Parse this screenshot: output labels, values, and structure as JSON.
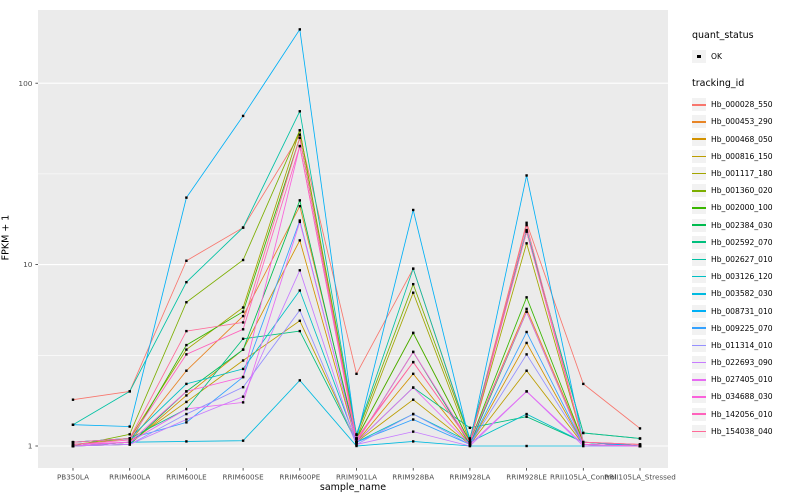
{
  "figure": {
    "background": "#FFFFFF",
    "panel_background": "#EBEBEB",
    "gridline_color": "#FFFFFF",
    "tick_label_color": "#4D4D4D",
    "point_color": "#000000"
  },
  "axes": {
    "x_title": "sample_name",
    "y_title": "FPKM + 1",
    "y_tick_labels": [
      "1",
      "10",
      "100"
    ]
  },
  "legend": {
    "quant_status_title": "quant_status",
    "quant_status_items": [
      {
        "label": "OK",
        "marker": "black-point"
      }
    ],
    "tracking_id_title": "tracking_id"
  },
  "chart_data": {
    "type": "line",
    "xlabel": "sample_name",
    "ylabel": "FPKM + 1",
    "yscale": "log10",
    "yticks": [
      1,
      10,
      100
    ],
    "minor_gridlines": [
      3.162,
      31.62
    ],
    "ylim": [
      0.93,
      240
    ],
    "grid": true,
    "legend_position": "right",
    "point_marker": {
      "shape": "square",
      "color": "#000000",
      "size": 2.4
    },
    "categories": [
      "PB350LA",
      "RRIM600LA",
      "RRIM600LE",
      "RRIM600SE",
      "RRIM600PE",
      "RRIM901LA",
      "RRIM928BA",
      "RRIM928LA",
      "RRIM928LE",
      "RRII105LA_Control",
      "RRII105LA_Stressed"
    ],
    "series": [
      {
        "name": "Hb_000028_550",
        "color": "#F8766D",
        "values": [
          1.8,
          2.0,
          10.5,
          16,
          52,
          2.5,
          9.5,
          1.08,
          17,
          2.2,
          1.25
        ]
      },
      {
        "name": "Hb_000453_290",
        "color": "#E88526",
        "values": [
          1.0,
          1.05,
          2.6,
          5.2,
          21,
          1.1,
          4.2,
          1.05,
          5.7,
          1.05,
          1.0
        ]
      },
      {
        "name": "Hb_000468_050",
        "color": "#D39200",
        "values": [
          1.0,
          1.02,
          1.9,
          3.4,
          13.6,
          1.05,
          2.5,
          1.02,
          3.7,
          1.02,
          1.0
        ]
      },
      {
        "name": "Hb_000816_150",
        "color": "#BC9D00",
        "values": [
          1.0,
          1.05,
          1.75,
          2.96,
          4.9,
          1.05,
          1.8,
          1.02,
          2.6,
          1.02,
          1.0
        ]
      },
      {
        "name": "Hb_001117_180",
        "color": "#A3A500",
        "values": [
          1.02,
          1.1,
          3.4,
          5.8,
          55,
          1.1,
          7.0,
          1.05,
          13.1,
          1.05,
          1.02
        ]
      },
      {
        "name": "Hb_001360_020",
        "color": "#7CAE00",
        "values": [
          1.0,
          1.16,
          6.2,
          10.6,
          55,
          1.15,
          7.8,
          1.1,
          15.2,
          1.18,
          1.1
        ]
      },
      {
        "name": "Hb_002000_100",
        "color": "#39B600",
        "values": [
          1.0,
          1.05,
          3.6,
          5.5,
          50,
          1.1,
          4.2,
          1.05,
          6.6,
          1.05,
          1.0
        ]
      },
      {
        "name": "Hb_002384_030",
        "color": "#00BB4E",
        "values": [
          1.0,
          1.02,
          2.0,
          3.4,
          22.6,
          1.05,
          3.3,
          1.02,
          5.5,
          1.02,
          1.0
        ]
      },
      {
        "name": "Hb_002592_070",
        "color": "#00BF7D",
        "values": [
          1.05,
          1.1,
          1.6,
          3.9,
          4.3,
          1.05,
          2.1,
          1.26,
          1.45,
          1.05,
          1.0
        ]
      },
      {
        "name": "Hb_002627_010",
        "color": "#00C1A3",
        "values": [
          1.31,
          2.0,
          8.0,
          16,
          70,
          1.16,
          9.5,
          1.1,
          15.5,
          1.18,
          1.1
        ]
      },
      {
        "name": "Hb_003126_120",
        "color": "#00BFC4",
        "values": [
          1.05,
          1.1,
          2.2,
          2.66,
          7.2,
          1.05,
          1.5,
          1.05,
          1.5,
          1.05,
          1.0
        ]
      },
      {
        "name": "Hb_003582_030",
        "color": "#00BAE0",
        "values": [
          1.0,
          1.05,
          1.06,
          1.07,
          2.3,
          1.0,
          1.06,
          1.0,
          1.0,
          1.0,
          1.0
        ]
      },
      {
        "name": "Hb_008731_010",
        "color": "#00B0F6",
        "values": [
          1.31,
          1.28,
          23.4,
          66,
          198,
          1.1,
          20,
          1.05,
          31,
          1.05,
          1.0
        ]
      },
      {
        "name": "Hb_009225_070",
        "color": "#35A2FF",
        "values": [
          1.05,
          1.1,
          1.35,
          2.4,
          17.5,
          1.05,
          1.4,
          1.02,
          4.25,
          1.02,
          1.0
        ]
      },
      {
        "name": "Hb_011314_010",
        "color": "#9590FF",
        "values": [
          1.0,
          1.02,
          1.5,
          2.11,
          5.6,
          1.02,
          1.5,
          1.02,
          3.2,
          1.02,
          1.0
        ]
      },
      {
        "name": "Hb_022693_090",
        "color": "#C77CFF",
        "values": [
          1.0,
          1.02,
          1.4,
          1.87,
          9.3,
          1.02,
          1.2,
          1.0,
          2.0,
          1.0,
          1.0
        ]
      },
      {
        "name": "Hb_027405_010",
        "color": "#E76BF3",
        "values": [
          1.0,
          1.05,
          1.6,
          1.74,
          17.2,
          1.05,
          2.1,
          1.02,
          2.0,
          1.02,
          1.0
        ]
      },
      {
        "name": "Hb_034688_030",
        "color": "#FA62DB",
        "values": [
          1.02,
          1.05,
          2.0,
          2.4,
          45,
          1.05,
          3.3,
          1.05,
          5.5,
          1.02,
          1.0
        ]
      },
      {
        "name": "Hb_142056_010",
        "color": "#FF62BC",
        "values": [
          1.02,
          1.08,
          3.2,
          4.4,
          45,
          1.08,
          2.9,
          1.05,
          15.2,
          1.05,
          1.02
        ]
      },
      {
        "name": "Hb_154038_040",
        "color": "#FF6A98",
        "values": [
          1.05,
          1.1,
          4.3,
          4.8,
          50,
          1.1,
          2.9,
          1.05,
          16.5,
          1.05,
          1.02
        ]
      }
    ]
  }
}
